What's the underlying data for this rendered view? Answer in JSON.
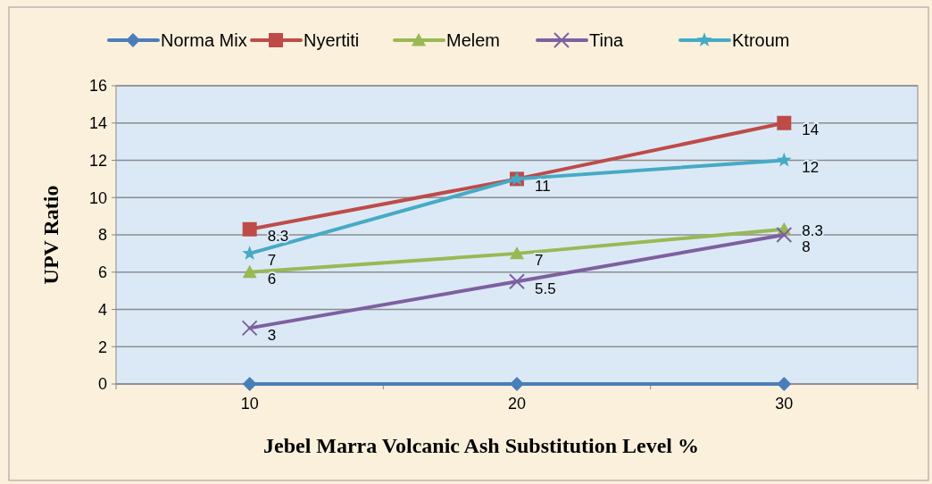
{
  "chart_data": {
    "type": "line",
    "xlabel": "Jebel Marra Volcanic Ash Substitution Level %",
    "ylabel": "UPV Ratio",
    "categories": [
      "10",
      "20",
      "30"
    ],
    "ylim": [
      0,
      16
    ],
    "yticks": [
      0,
      2,
      4,
      6,
      8,
      10,
      12,
      14,
      16
    ],
    "grid": "y",
    "legend": "top",
    "series": [
      {
        "name": "Norma Mix",
        "color": "#4a7ebb",
        "marker": "diamond",
        "values": [
          0,
          0,
          0
        ]
      },
      {
        "name": "Nyertiti",
        "color": "#be4b48",
        "marker": "square",
        "values": [
          8.3,
          11,
          14
        ],
        "value_labels": [
          "8.3",
          null,
          "14"
        ]
      },
      {
        "name": "Melem",
        "color": "#98b954",
        "marker": "triangle",
        "values": [
          6,
          7,
          8.3
        ],
        "value_labels": [
          "6",
          "7",
          "8.3"
        ]
      },
      {
        "name": "Tina",
        "color": "#7d60a0",
        "marker": "cross",
        "values": [
          3,
          5.5,
          8
        ],
        "value_labels": [
          "3",
          "5.5",
          "8"
        ]
      },
      {
        "name": "Ktroum",
        "color": "#46aac5",
        "marker": "star",
        "values": [
          7,
          11,
          12
        ],
        "value_labels": [
          "7",
          "11",
          "12"
        ]
      }
    ]
  }
}
